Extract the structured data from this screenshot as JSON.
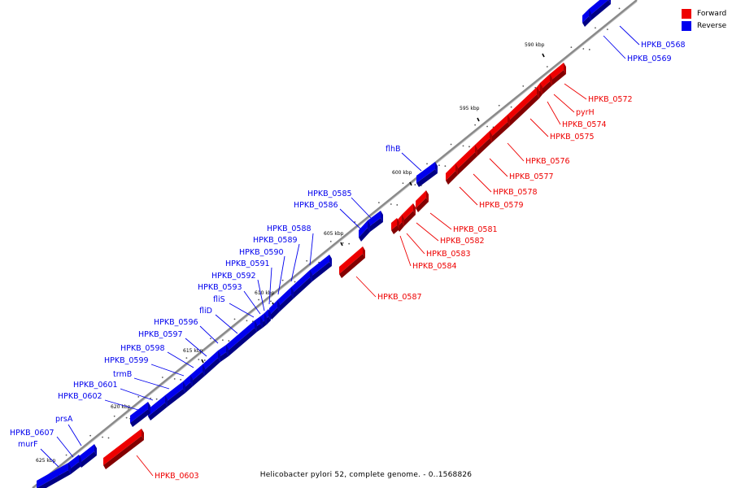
{
  "caption": "Helicobacter pylori 52, complete genome. - 0..1568826",
  "legend": [
    {
      "label": "Forward",
      "color": "#ee0000"
    },
    {
      "label": "Reverse",
      "color": "#0000ee"
    }
  ],
  "colors": {
    "forward": "#ee0000",
    "reverse": "#0000ee",
    "backbone": "#8a8a8a",
    "tick": "#000000"
  },
  "ticks": [
    {
      "label": "590 kbp"
    },
    {
      "label": "595 kbp"
    },
    {
      "label": "600 kbp"
    },
    {
      "label": "605 kbp"
    },
    {
      "label": "610 kbp"
    },
    {
      "label": "615 kbp"
    },
    {
      "label": "620 kbp"
    },
    {
      "label": "625 kbp"
    }
  ],
  "features": [
    {
      "name": "HPKB_0568",
      "strand": "reverse"
    },
    {
      "name": "HPKB_0569",
      "strand": "reverse"
    },
    {
      "name": "HPKB_0572",
      "strand": "forward"
    },
    {
      "name": "pyrH",
      "strand": "forward"
    },
    {
      "name": "HPKB_0574",
      "strand": "forward"
    },
    {
      "name": "HPKB_0575",
      "strand": "forward"
    },
    {
      "name": "HPKB_0576",
      "strand": "forward"
    },
    {
      "name": "HPKB_0577",
      "strand": "forward"
    },
    {
      "name": "HPKB_0578",
      "strand": "forward"
    },
    {
      "name": "HPKB_0579",
      "strand": "forward"
    },
    {
      "name": "flhB",
      "strand": "reverse"
    },
    {
      "name": "HPKB_0581",
      "strand": "forward"
    },
    {
      "name": "HPKB_0582",
      "strand": "forward"
    },
    {
      "name": "HPKB_0583",
      "strand": "forward"
    },
    {
      "name": "HPKB_0584",
      "strand": "forward"
    },
    {
      "name": "HPKB_0585",
      "strand": "reverse"
    },
    {
      "name": "HPKB_0586",
      "strand": "reverse"
    },
    {
      "name": "HPKB_0587",
      "strand": "forward"
    },
    {
      "name": "HPKB_0588",
      "strand": "reverse"
    },
    {
      "name": "HPKB_0589",
      "strand": "reverse"
    },
    {
      "name": "HPKB_0590",
      "strand": "reverse"
    },
    {
      "name": "HPKB_0591",
      "strand": "reverse"
    },
    {
      "name": "HPKB_0592",
      "strand": "reverse"
    },
    {
      "name": "HPKB_0593",
      "strand": "reverse"
    },
    {
      "name": "fliS",
      "strand": "reverse"
    },
    {
      "name": "fliD",
      "strand": "reverse"
    },
    {
      "name": "HPKB_0596",
      "strand": "reverse"
    },
    {
      "name": "HPKB_0597",
      "strand": "reverse"
    },
    {
      "name": "HPKB_0598",
      "strand": "reverse"
    },
    {
      "name": "HPKB_0599",
      "strand": "reverse"
    },
    {
      "name": "trmB",
      "strand": "reverse"
    },
    {
      "name": "HPKB_0601",
      "strand": "reverse"
    },
    {
      "name": "HPKB_0602",
      "strand": "reverse"
    },
    {
      "name": "prsA",
      "strand": "reverse"
    },
    {
      "name": "HPKB_0603",
      "strand": "forward"
    },
    {
      "name": "HPKB_0607",
      "strand": "reverse"
    },
    {
      "name": "murF",
      "strand": "reverse"
    }
  ]
}
